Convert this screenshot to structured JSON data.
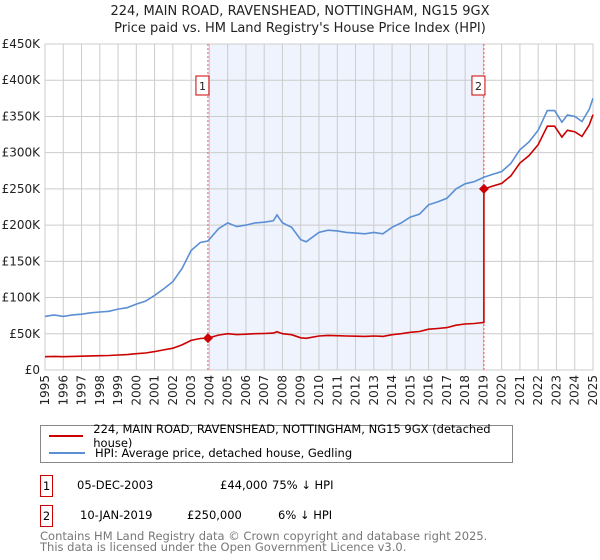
{
  "title_line1": "224, MAIN ROAD, RAVENSHEAD, NOTTINGHAM, NG15 9GX",
  "title_line2": "Price paid vs. HM Land Registry's House Price Index (HPI)",
  "chart_data": {
    "type": "line",
    "xlim": [
      1995,
      2025
    ],
    "ylim": [
      0,
      450000
    ],
    "y_ticks": [
      0,
      50000,
      100000,
      150000,
      200000,
      250000,
      300000,
      350000,
      400000,
      450000
    ],
    "y_tick_labels": [
      "£0",
      "£50K",
      "£100K",
      "£150K",
      "£200K",
      "£250K",
      "£300K",
      "£350K",
      "£400K",
      "£450K"
    ],
    "x_ticks": [
      "1995",
      "1996",
      "1997",
      "1998",
      "1999",
      "2000",
      "2001",
      "2002",
      "2003",
      "2004",
      "2005",
      "2006",
      "2007",
      "2008",
      "2009",
      "2010",
      "2011",
      "2012",
      "2013",
      "2014",
      "2015",
      "2016",
      "2017",
      "2018",
      "2019",
      "2020",
      "2021",
      "2022",
      "2023",
      "2024",
      "2025"
    ],
    "grid": true,
    "shaded_range": [
      2003.92,
      2019.03
    ],
    "colors": {
      "property": "#cc0000",
      "hpi": "#5b8fd4",
      "shade": "#eef3fd",
      "grid": "#cccccc"
    },
    "series": [
      {
        "name": "224, MAIN ROAD, RAVENSHEAD, NOTTINGHAM, NG15 9GX (detached house)",
        "color": "#cc0000",
        "points": [
          [
            1995,
            18300
          ],
          [
            1995.5,
            18800
          ],
          [
            1996,
            18300
          ],
          [
            1996.5,
            18800
          ],
          [
            1997,
            19000
          ],
          [
            1997.5,
            19500
          ],
          [
            1998,
            19800
          ],
          [
            1998.5,
            20000
          ],
          [
            1999,
            20700
          ],
          [
            1999.5,
            21200
          ],
          [
            2000,
            22500
          ],
          [
            2000.5,
            23500
          ],
          [
            2001,
            25400
          ],
          [
            2001.5,
            27700
          ],
          [
            2002,
            30100
          ],
          [
            2002.5,
            34600
          ],
          [
            2003,
            40800
          ],
          [
            2003.5,
            43500
          ],
          [
            2003.92,
            44000
          ],
          [
            2004.5,
            48200
          ],
          [
            2005,
            50100
          ],
          [
            2005.5,
            48900
          ],
          [
            2006,
            49400
          ],
          [
            2006.5,
            50100
          ],
          [
            2007,
            50400
          ],
          [
            2007.5,
            50900
          ],
          [
            2007.7,
            52900
          ],
          [
            2008,
            50100
          ],
          [
            2008.5,
            48700
          ],
          [
            2009,
            44500
          ],
          [
            2009.3,
            43700
          ],
          [
            2010,
            46900
          ],
          [
            2010.5,
            47700
          ],
          [
            2011,
            47400
          ],
          [
            2011.5,
            46900
          ],
          [
            2012,
            46700
          ],
          [
            2012.5,
            46400
          ],
          [
            2013,
            46900
          ],
          [
            2013.5,
            46400
          ],
          [
            2014,
            48700
          ],
          [
            2014.5,
            50100
          ],
          [
            2015,
            52100
          ],
          [
            2015.5,
            53100
          ],
          [
            2016,
            56300
          ],
          [
            2016.5,
            57300
          ],
          [
            2017,
            58500
          ],
          [
            2017.5,
            61800
          ],
          [
            2018,
            63500
          ],
          [
            2018.5,
            64200
          ],
          [
            2019.03,
            65700
          ],
          [
            2019.03,
            250000
          ],
          [
            2019.5,
            253800
          ],
          [
            2020,
            257600
          ],
          [
            2020.5,
            267900
          ],
          [
            2021,
            285800
          ],
          [
            2021.5,
            296100
          ],
          [
            2022,
            311100
          ],
          [
            2022.5,
            336500
          ],
          [
            2022.9,
            336500
          ],
          [
            2023.3,
            321500
          ],
          [
            2023.6,
            330900
          ],
          [
            2024,
            329000
          ],
          [
            2024.4,
            322400
          ],
          [
            2024.8,
            338400
          ],
          [
            2025,
            352500
          ]
        ]
      },
      {
        "name": "HPI: Average price, detached house, Gedling",
        "color": "#5b8fd4",
        "points": [
          [
            1995,
            74000
          ],
          [
            1995.5,
            76000
          ],
          [
            1996,
            74000
          ],
          [
            1996.5,
            76000
          ],
          [
            1997,
            77000
          ],
          [
            1997.5,
            79000
          ],
          [
            1998,
            80000
          ],
          [
            1998.5,
            81000
          ],
          [
            1999,
            84000
          ],
          [
            1999.5,
            86000
          ],
          [
            2000,
            91000
          ],
          [
            2000.5,
            95000
          ],
          [
            2001,
            103000
          ],
          [
            2001.5,
            112000
          ],
          [
            2002,
            122000
          ],
          [
            2002.5,
            140000
          ],
          [
            2003,
            165000
          ],
          [
            2003.5,
            176000
          ],
          [
            2003.92,
            178000
          ],
          [
            2004.5,
            195000
          ],
          [
            2005,
            203000
          ],
          [
            2005.5,
            198000
          ],
          [
            2006,
            200000
          ],
          [
            2006.5,
            203000
          ],
          [
            2007,
            204000
          ],
          [
            2007.5,
            206000
          ],
          [
            2007.7,
            214000
          ],
          [
            2008,
            203000
          ],
          [
            2008.5,
            197000
          ],
          [
            2009,
            180000
          ],
          [
            2009.3,
            177000
          ],
          [
            2010,
            190000
          ],
          [
            2010.5,
            193000
          ],
          [
            2011,
            192000
          ],
          [
            2011.5,
            190000
          ],
          [
            2012,
            189000
          ],
          [
            2012.5,
            188000
          ],
          [
            2013,
            190000
          ],
          [
            2013.5,
            188000
          ],
          [
            2014,
            197000
          ],
          [
            2014.5,
            203000
          ],
          [
            2015,
            211000
          ],
          [
            2015.5,
            215000
          ],
          [
            2016,
            228000
          ],
          [
            2016.5,
            232000
          ],
          [
            2017,
            237000
          ],
          [
            2017.5,
            250000
          ],
          [
            2018,
            257000
          ],
          [
            2018.5,
            260000
          ],
          [
            2019.03,
            266000
          ],
          [
            2019.5,
            270000
          ],
          [
            2020,
            274000
          ],
          [
            2020.5,
            285000
          ],
          [
            2021,
            304000
          ],
          [
            2021.5,
            315000
          ],
          [
            2022,
            331000
          ],
          [
            2022.5,
            358000
          ],
          [
            2022.9,
            358000
          ],
          [
            2023.3,
            342000
          ],
          [
            2023.6,
            352000
          ],
          [
            2024,
            350000
          ],
          [
            2024.4,
            343000
          ],
          [
            2024.8,
            360000
          ],
          [
            2025,
            375000
          ]
        ]
      }
    ],
    "sales": [
      {
        "label": "1",
        "x": 2003.92,
        "y": 44000
      },
      {
        "label": "2",
        "x": 2019.03,
        "y": 250000
      }
    ],
    "legend_position": "below"
  },
  "legend": {
    "property": "224, MAIN ROAD, RAVENSHEAD, NOTTINGHAM, NG15 9GX (detached house)",
    "hpi": "HPI: Average price, detached house, Gedling"
  },
  "transactions": [
    {
      "num": "1",
      "date": "05-DEC-2003",
      "price": "£44,000",
      "hpi": "75% ↓ HPI"
    },
    {
      "num": "2",
      "date": "10-JAN-2019",
      "price": "£250,000",
      "hpi": "6% ↓ HPI"
    }
  ],
  "footer": {
    "line1": "Contains HM Land Registry data © Crown copyright and database right 2025.",
    "line2": "This data is licensed under the Open Government Licence v3.0."
  }
}
